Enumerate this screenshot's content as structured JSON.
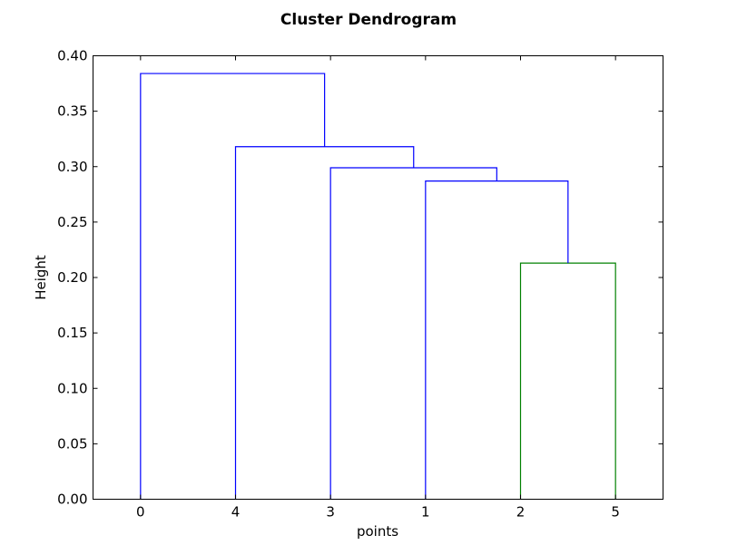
{
  "chart_data": {
    "type": "dendrogram",
    "title": "Cluster Dendrogram",
    "xlabel": "points",
    "ylabel": "Height",
    "ylim": [
      0,
      0.4
    ],
    "yticks": [
      "0.00",
      "0.05",
      "0.10",
      "0.15",
      "0.20",
      "0.25",
      "0.30",
      "0.35",
      "0.40"
    ],
    "leaf_order": [
      "0",
      "4",
      "3",
      "1",
      "2",
      "5"
    ],
    "merges": [
      {
        "left": "2",
        "right": "5",
        "height": 0.213,
        "color": "#008000"
      },
      {
        "left": "1",
        "right": "(2,5)",
        "height": 0.287,
        "color": "#0000ff"
      },
      {
        "left": "3",
        "right": "(1,(2,5))",
        "height": 0.299,
        "color": "#0000ff"
      },
      {
        "left": "4",
        "right": "(3,(1,(2,5)))",
        "height": 0.318,
        "color": "#0000ff"
      },
      {
        "left": "0",
        "right": "(4,(3,(1,(2,5))))",
        "height": 0.384,
        "color": "#0000ff"
      }
    ],
    "grid": false,
    "colors": {
      "cluster": "#008000",
      "above_threshold": "#0000ff",
      "axes": "#000000"
    }
  }
}
